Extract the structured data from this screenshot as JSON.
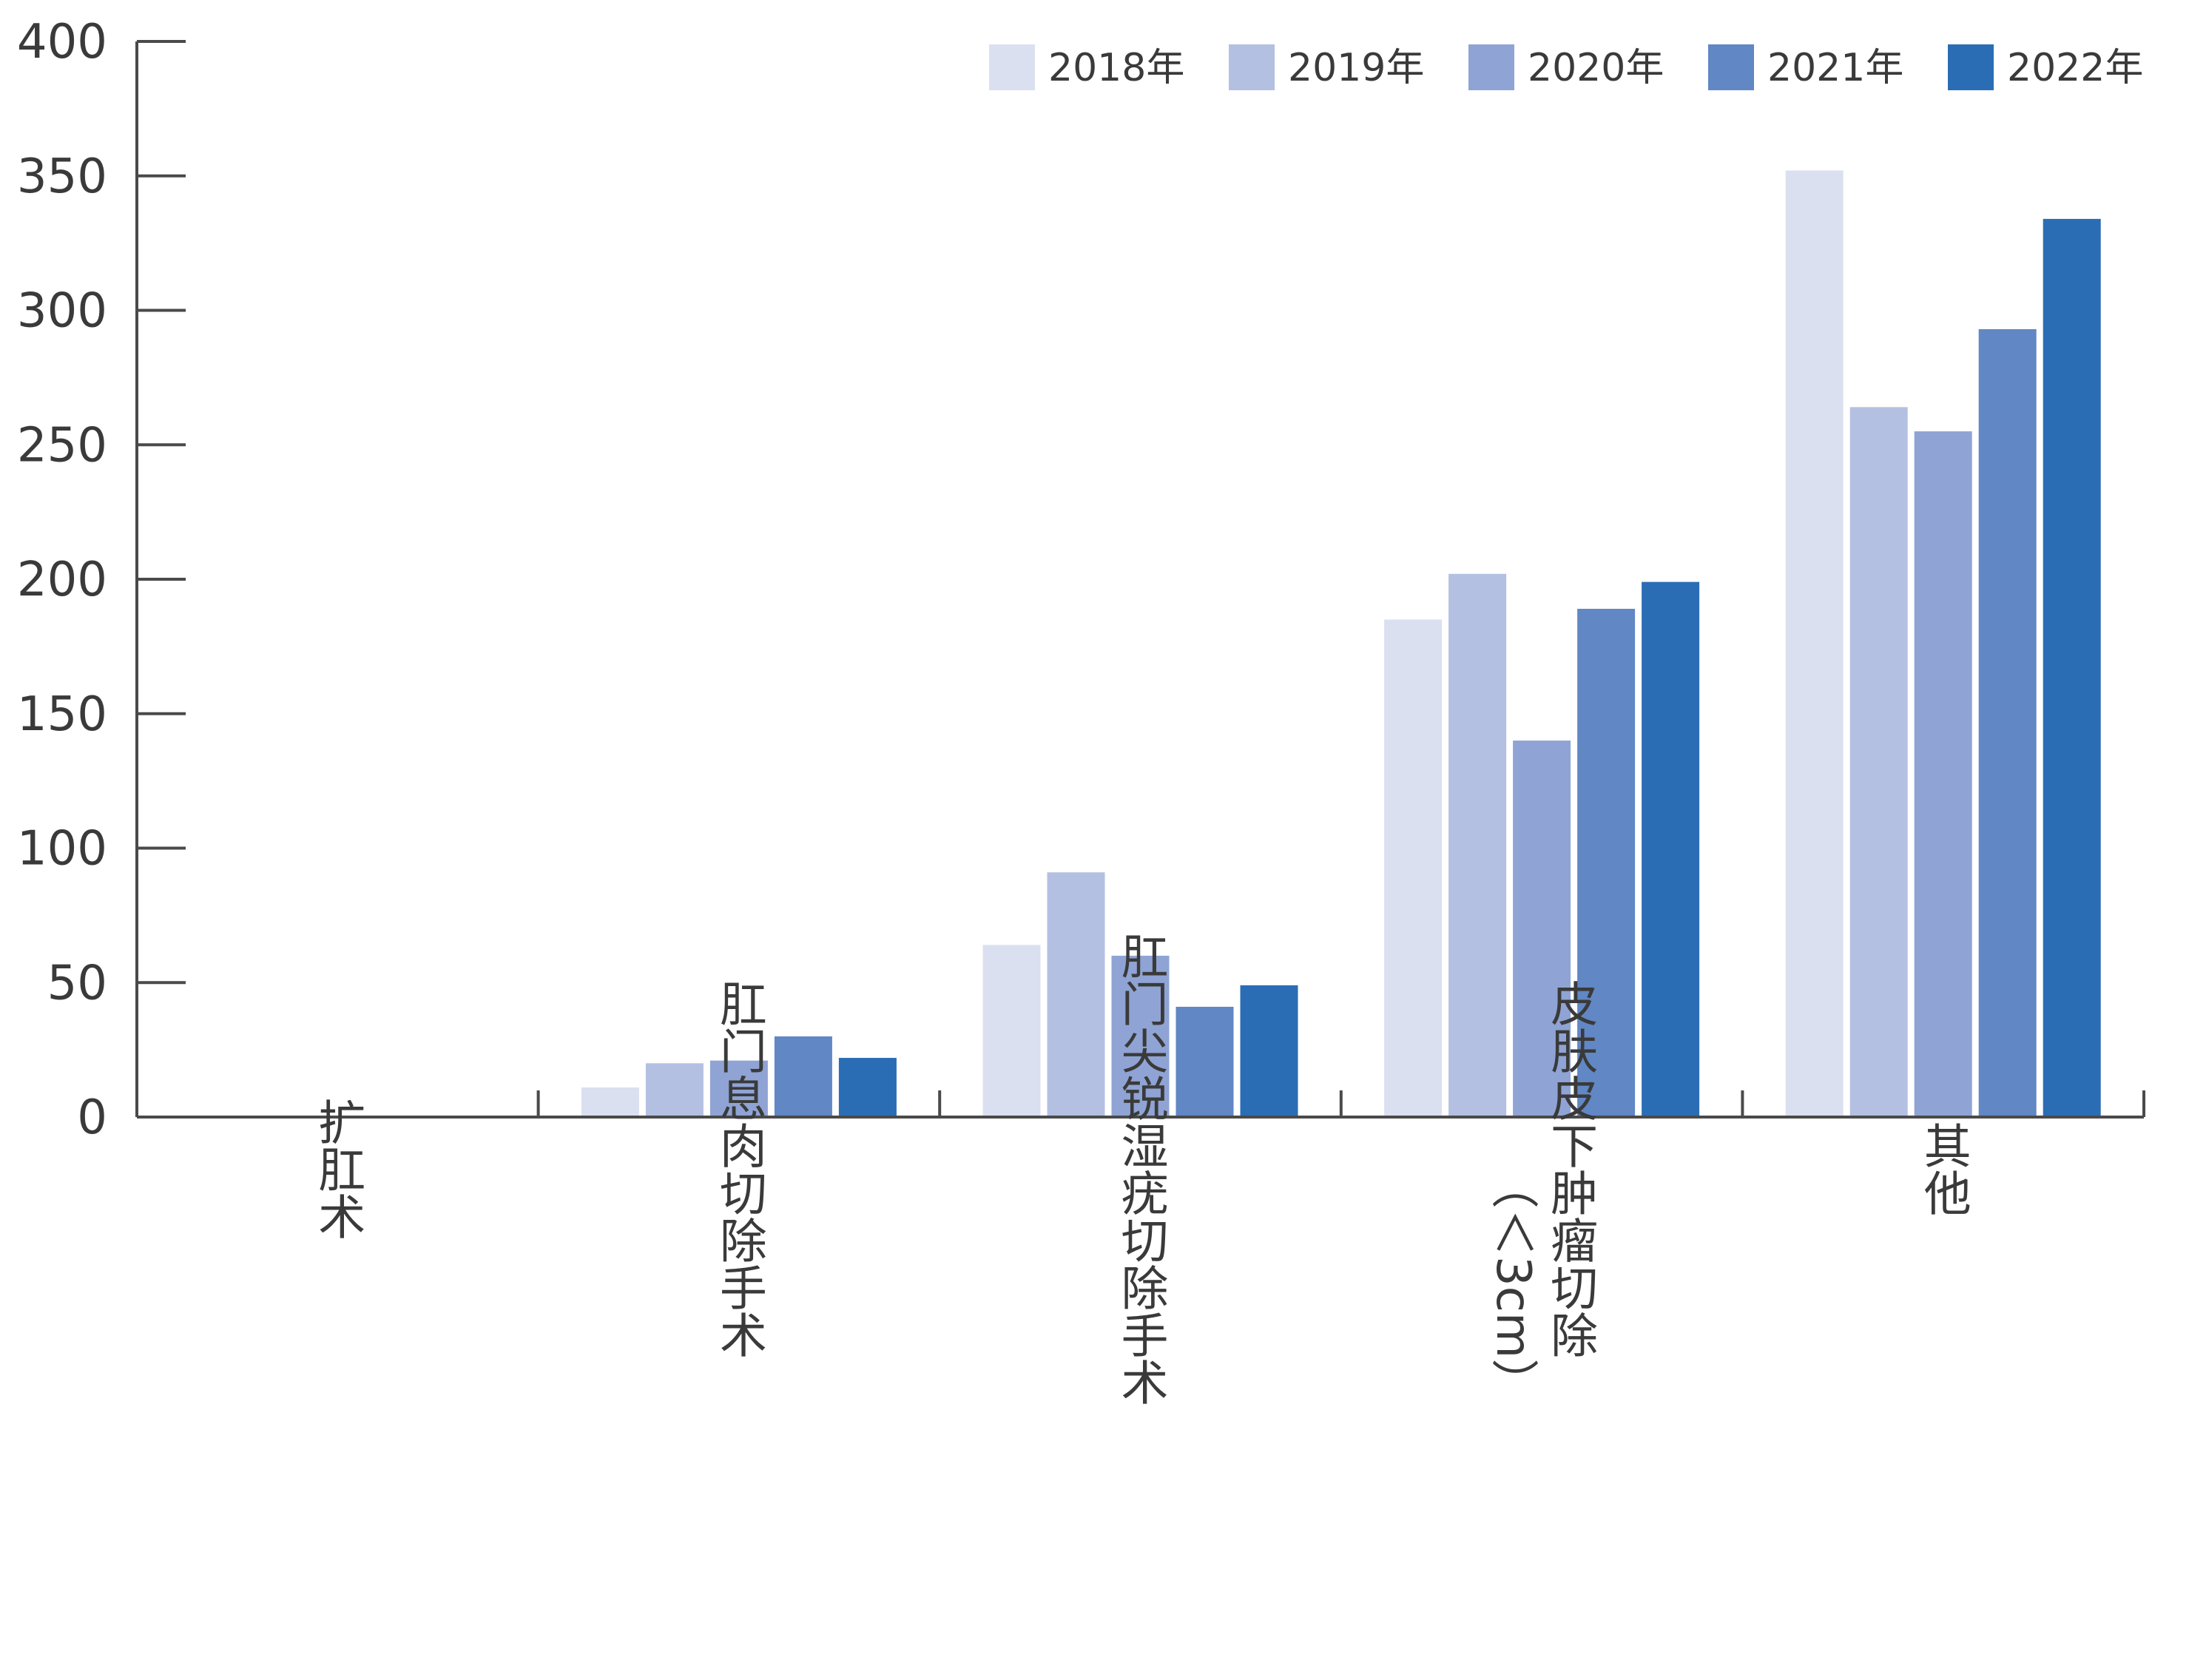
{
  "chart_data": {
    "type": "bar",
    "categories": [
      "扩肛术",
      "肛门息肉切除手术",
      "肛门尖锐湿疣切除手术",
      "（＜3cm）皮肤皮下肿瘤切除",
      "其他"
    ],
    "category_label_lines": [
      [
        {
          "text": "扩肛术",
          "rotated": false
        }
      ],
      [
        {
          "text": "肛门息肉切除手术",
          "rotated": false
        }
      ],
      [
        {
          "text": "肛门尖锐湿疣切除手术",
          "rotated": false
        }
      ],
      [
        {
          "text": "皮肤皮下肿瘤切除",
          "rotated": false
        },
        {
          "text": "（＜3cm）",
          "rotated": true
        }
      ],
      [
        {
          "text": "其他",
          "rotated": false
        }
      ]
    ],
    "series": [
      {
        "name": "2018年",
        "color": "#dbe0f0",
        "values": [
          0.5,
          11,
          64,
          185,
          352
        ]
      },
      {
        "name": "2019年",
        "color": "#b3c0e2",
        "values": [
          0.5,
          20,
          91,
          202,
          264
        ]
      },
      {
        "name": "2020年",
        "color": "#8fa4d4",
        "values": [
          0,
          21,
          60,
          140,
          255
        ]
      },
      {
        "name": "2021年",
        "color": "#6187c4",
        "values": [
          0,
          30,
          41,
          189,
          293
        ]
      },
      {
        "name": "2022年",
        "color": "#2a6db4",
        "values": [
          0,
          22,
          49,
          199,
          334
        ]
      }
    ],
    "y_ticks": [
      "0",
      "50",
      "100",
      "150",
      "200",
      "250",
      "300",
      "350",
      "400"
    ],
    "ylim": [
      0,
      400
    ],
    "title": "",
    "xlabel": "",
    "ylabel": "",
    "legend_position": "top-right",
    "grid": false
  }
}
